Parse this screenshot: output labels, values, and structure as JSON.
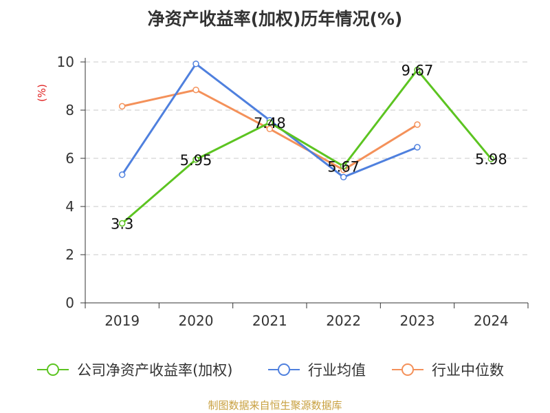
{
  "chart_data": {
    "type": "line",
    "title": "净资产收益率(加权)历年情况(%)",
    "ylabel": "(%)",
    "xlabel": "",
    "categories": [
      "2019",
      "2020",
      "2021",
      "2022",
      "2023",
      "2024"
    ],
    "ylim": [
      0,
      10
    ],
    "yticks": [
      0,
      2,
      4,
      6,
      8,
      10
    ],
    "grid": true,
    "legend_position": "bottom",
    "series": [
      {
        "name": "公司净资产收益率(加权)",
        "color": "#5cc421",
        "values": [
          3.3,
          5.95,
          7.48,
          5.67,
          9.67,
          5.98
        ],
        "labels": [
          "3.3",
          "5.95",
          "7.48",
          "5.67",
          "9.67",
          "5.98"
        ]
      },
      {
        "name": "行业均值",
        "color": "#4f80de",
        "values": [
          5.32,
          9.92,
          7.58,
          5.22,
          6.46,
          null
        ]
      },
      {
        "name": "行业中位数",
        "color": "#f4915a",
        "values": [
          8.16,
          8.84,
          7.22,
          5.52,
          7.4,
          null
        ]
      }
    ]
  },
  "footer": {
    "source": "制图数据来自恒生聚源数据库"
  }
}
